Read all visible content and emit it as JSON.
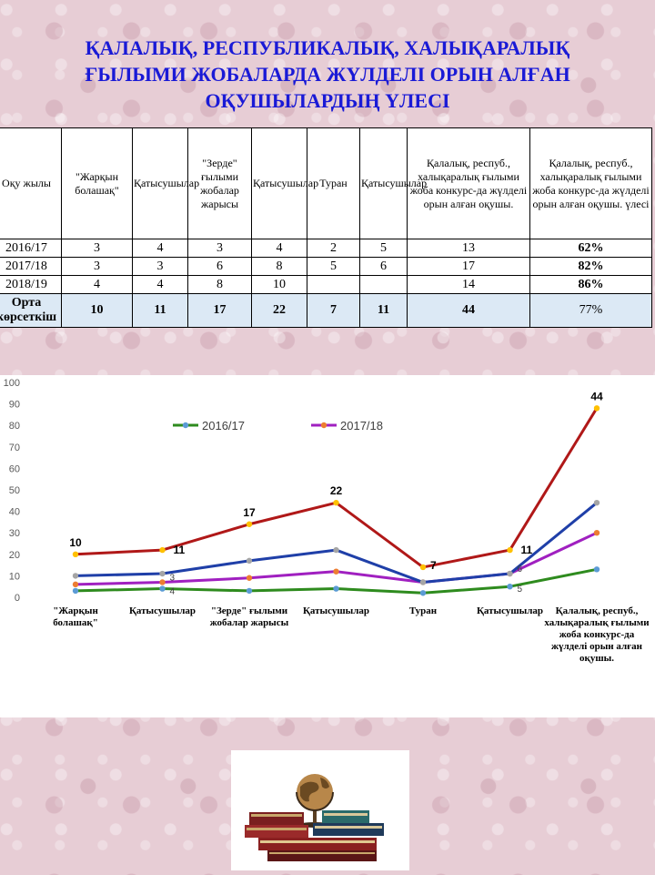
{
  "title": "ҚАЛАЛЫҚ, РЕСПУБЛИКАЛЫҚ, ХАЛЫҚАРАЛЫҚ ҒЫЛЫМИ ЖОБАЛАРДА ЖҮЛДЕЛІ ОРЫН АЛҒАН ОҚУШЫЛАРДЫҢ ҮЛЕСІ",
  "table": {
    "headers": [
      "Оқу жылы",
      "\"Жарқын болашақ\"",
      "Қатысушылар",
      "\"Зерде\" ғылыми жобалар жарысы",
      "Қатысушылар",
      "Туран",
      "Қатысушылар",
      "Қалалық, респуб., халықаралық ғылыми жоба конкурс-да жүлделі орын алған оқушы.",
      "Қалалық, респуб., халықаралық ғылыми жоба конкурс-да жүлделі орын алған оқушы. үлесі"
    ],
    "rows": [
      [
        "2016/17",
        "3",
        "4",
        "3",
        "4",
        "2",
        "5",
        "13",
        "62%"
      ],
      [
        "2017/18",
        "3",
        "3",
        "6",
        "8",
        "5",
        "6",
        "17",
        "82%"
      ],
      [
        "2018/19",
        "4",
        "4",
        "8",
        "10",
        "",
        "",
        "14",
        "86%"
      ]
    ],
    "total": [
      "Орта көрсеткіш",
      "10",
      "11",
      "17",
      "22",
      "7",
      "11",
      "44",
      "77%"
    ]
  },
  "chart_data": {
    "type": "line",
    "categories": [
      "\"Жарқын болашақ\"",
      "Қатысушылар",
      "\"Зерде\" ғылыми жобалар жарысы",
      "Қатысушылар",
      "Туран",
      "Қатысушылар",
      "Қалалық, респуб., халықаралық ғылыми жоба конкурс-да жүлделі орын алған оқушы."
    ],
    "ylim": [
      0,
      100
    ],
    "yticks": [
      0,
      10,
      20,
      30,
      40,
      50,
      60,
      70,
      80,
      90,
      100
    ],
    "grid": false,
    "legend": "top",
    "series": [
      {
        "name": "2016/17",
        "values": [
          3,
          4,
          3,
          4,
          2,
          5,
          13
        ],
        "color": "#2e8b1e",
        "marker": "#5b9bd5"
      },
      {
        "name": "2017/18",
        "values": [
          6,
          7,
          9,
          12,
          7,
          11,
          30
        ],
        "color": "#a020c0",
        "marker": "#ed7d31"
      },
      {
        "name": "",
        "values": [
          10,
          11,
          17,
          22,
          7,
          11,
          44
        ],
        "color": "#1f3fa8",
        "marker": "#a5a5a5"
      },
      {
        "name": "",
        "values": [
          20,
          22,
          34,
          44,
          14,
          22,
          88
        ],
        "color": "#b01818",
        "marker": "#ffc000"
      }
    ],
    "data_labels": [
      {
        "series": 3,
        "index": 0,
        "text": "10"
      },
      {
        "series": 3,
        "index": 1,
        "text": "11"
      },
      {
        "series": 3,
        "index": 2,
        "text": "17"
      },
      {
        "series": 3,
        "index": 3,
        "text": "22"
      },
      {
        "series": 3,
        "index": 4,
        "text": "7"
      },
      {
        "series": 3,
        "index": 5,
        "text": "11"
      },
      {
        "series": 3,
        "index": 6,
        "text": "44"
      },
      {
        "series": 0,
        "index": 1,
        "text": "4"
      },
      {
        "series": 1,
        "index": 1,
        "text": "3"
      },
      {
        "series": 1,
        "index": 5,
        "text": "6"
      },
      {
        "series": 0,
        "index": 5,
        "text": "5"
      }
    ]
  }
}
